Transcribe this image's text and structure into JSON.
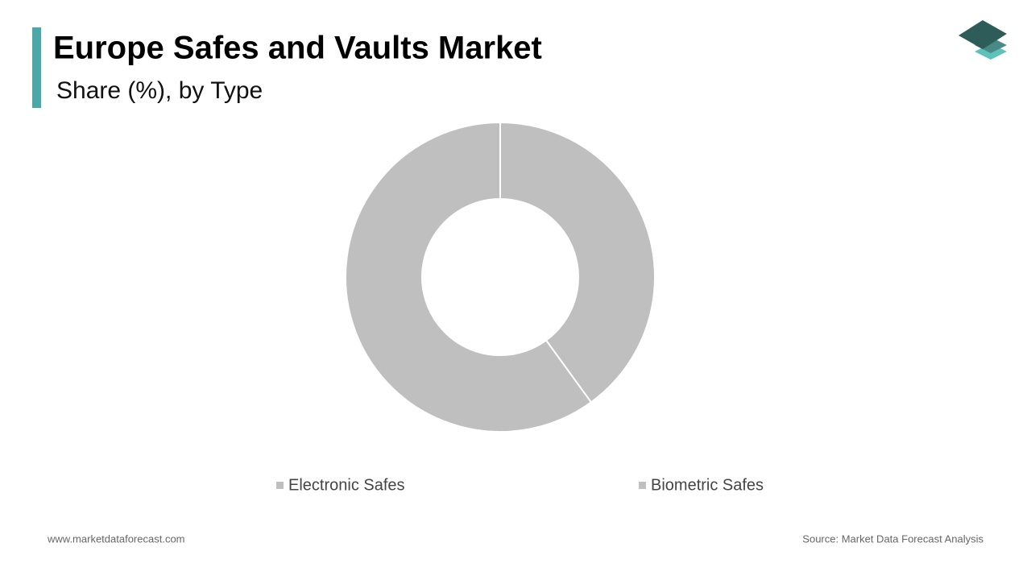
{
  "chart_data": {
    "type": "donut",
    "title": "Europe Safes and Vaults Market",
    "subtitle": "Share (%), by Type",
    "categories": [
      "Electronic Safes",
      "Biometric Safes"
    ],
    "values": [
      40,
      60
    ],
    "colors": [
      "#bfbfbf",
      "#bfbfbf"
    ]
  },
  "footer": {
    "website": "www.marketdataforecast.com",
    "source": "Source: Market Data Forecast Analysis"
  }
}
